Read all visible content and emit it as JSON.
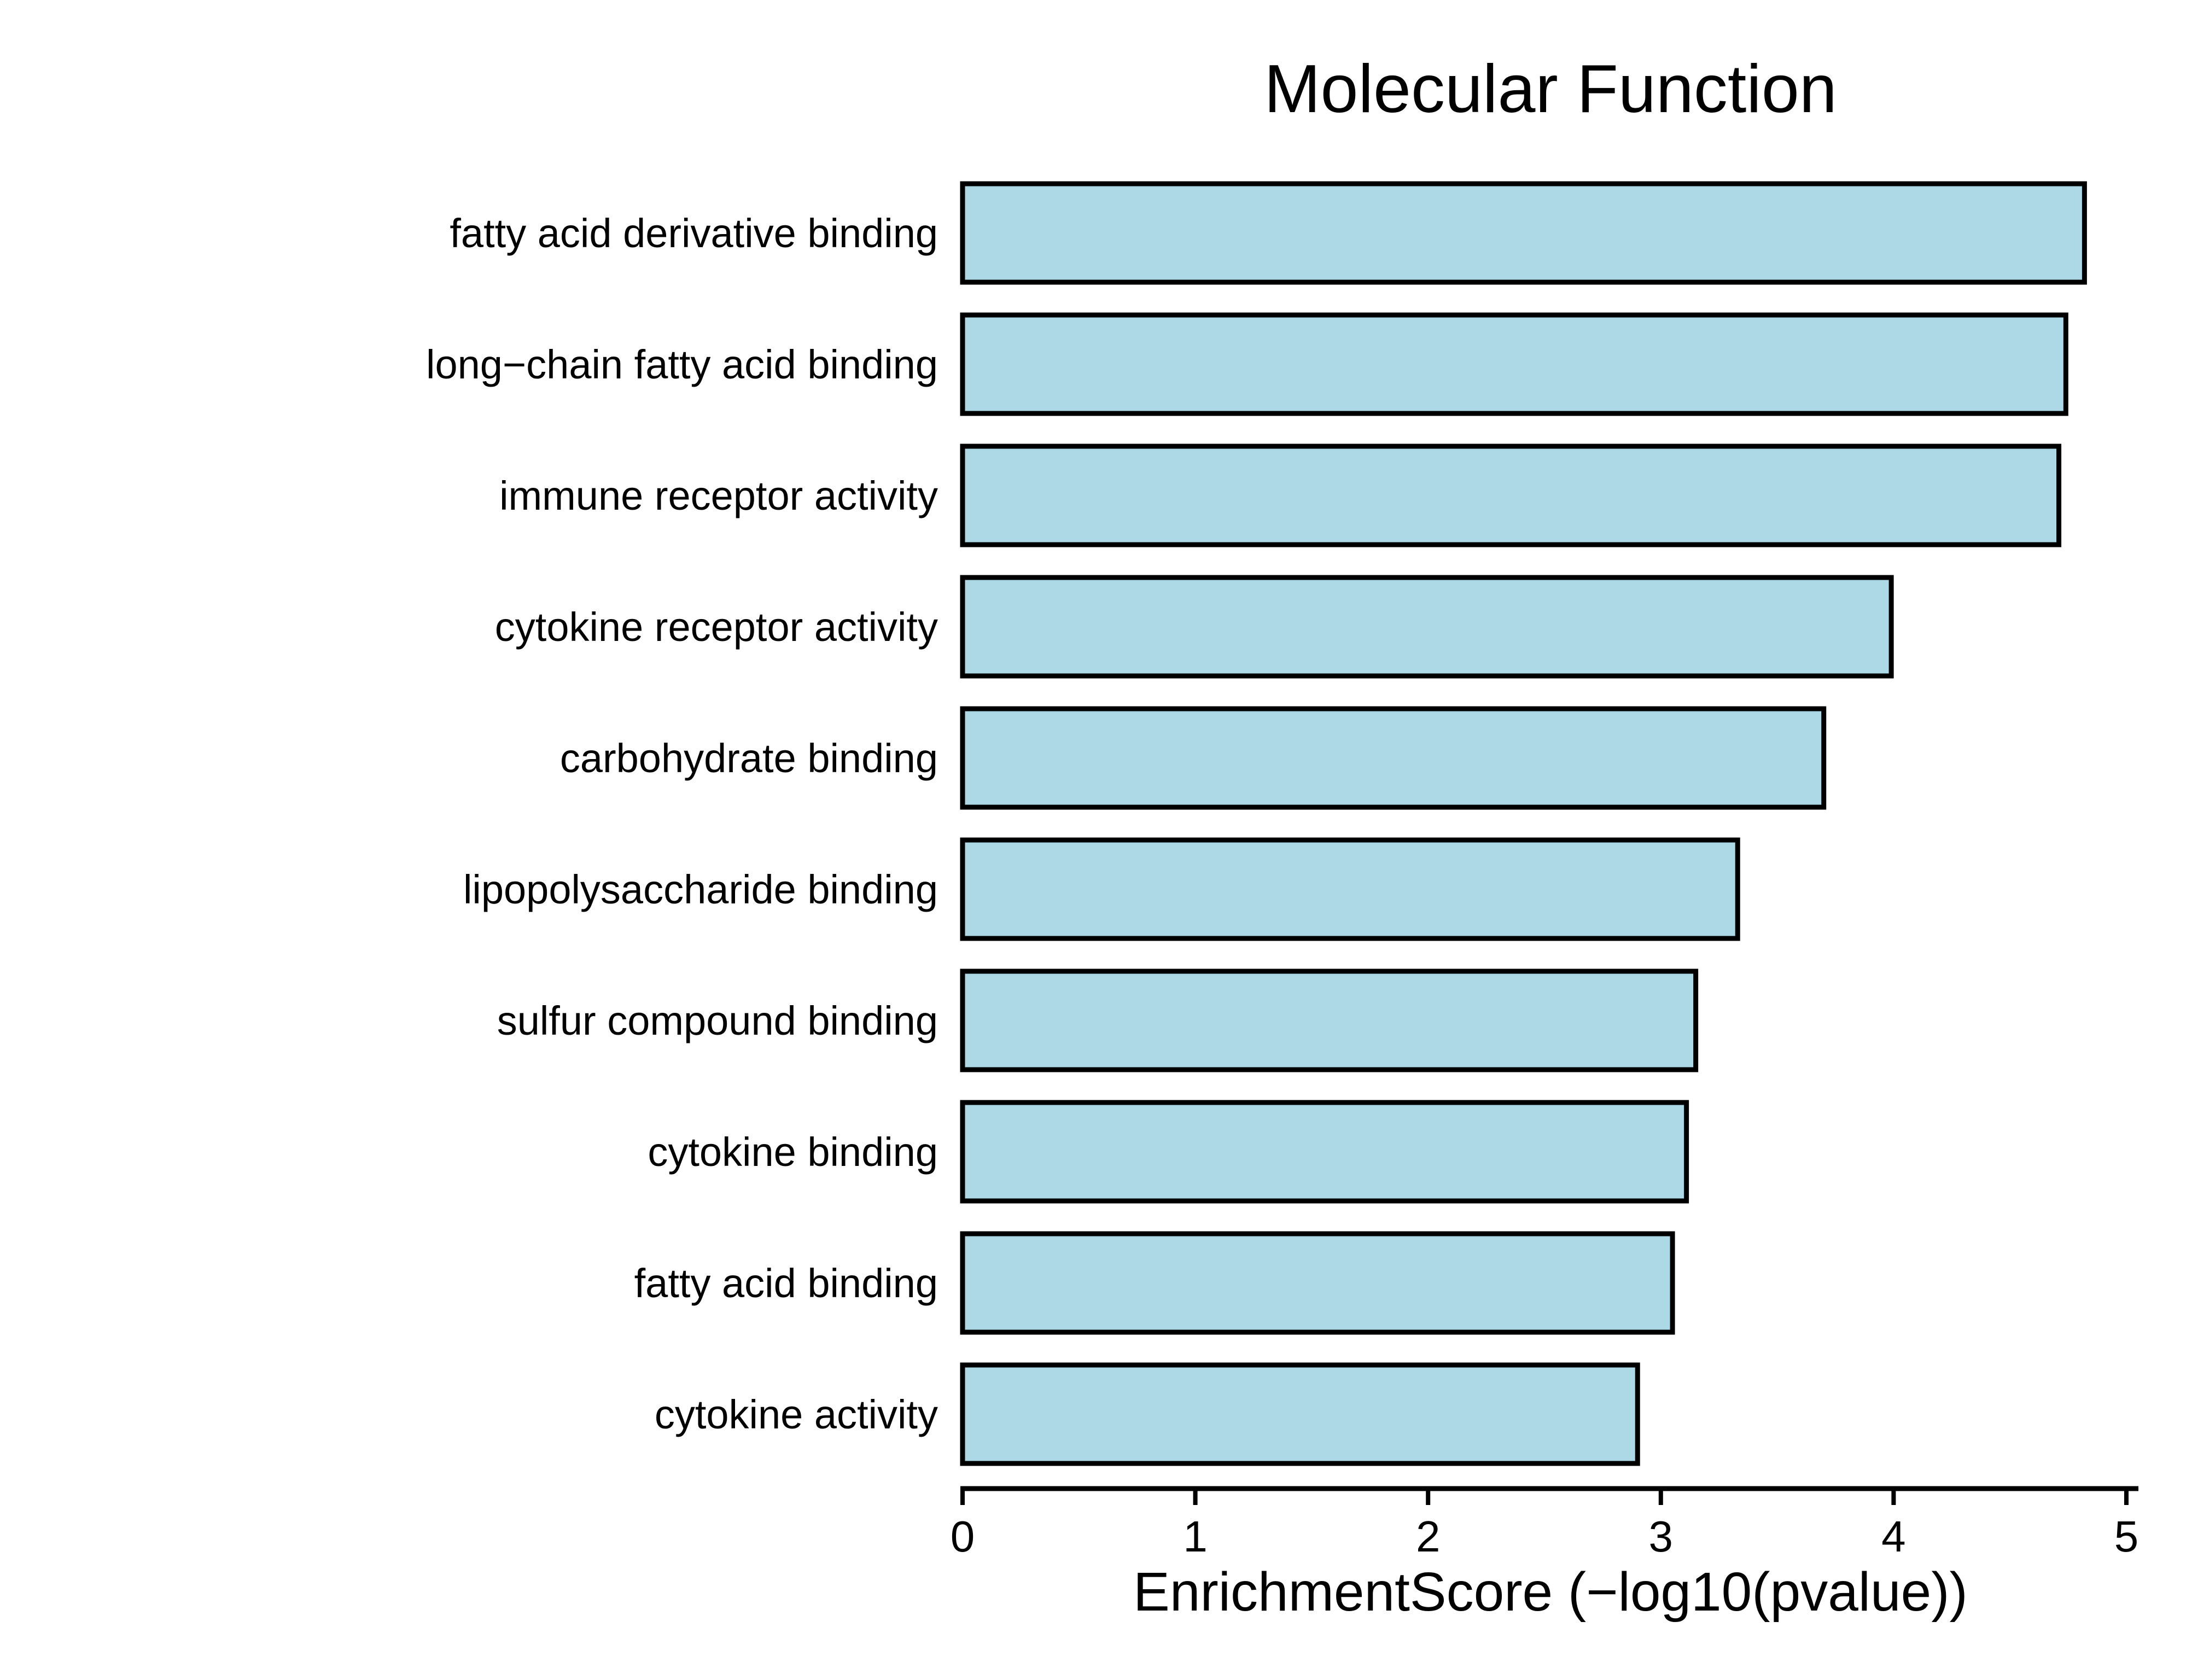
{
  "chart_data": {
    "type": "bar",
    "orientation": "horizontal",
    "title": "Molecular Function",
    "xlabel": "EnrichmentScore (−log10(pvalue))",
    "ylabel": "",
    "categories": [
      "fatty acid derivative binding",
      "long−chain fatty acid binding",
      "immune receptor activity",
      "cytokine receptor activity",
      "carbohydrate binding",
      "lipopolysaccharide binding",
      "sulfur compound binding",
      "cytokine binding",
      "fatty acid binding",
      "cytokine activity"
    ],
    "values": [
      4.82,
      4.74,
      4.71,
      3.99,
      3.7,
      3.33,
      3.15,
      3.11,
      3.05,
      2.9
    ],
    "xlim": [
      0,
      5
    ],
    "xticks": [
      "0",
      "1",
      "2",
      "3",
      "4",
      "5"
    ],
    "grid": false,
    "legend": "none",
    "bar_color": "#add8e6",
    "edge_color": "#000000"
  }
}
